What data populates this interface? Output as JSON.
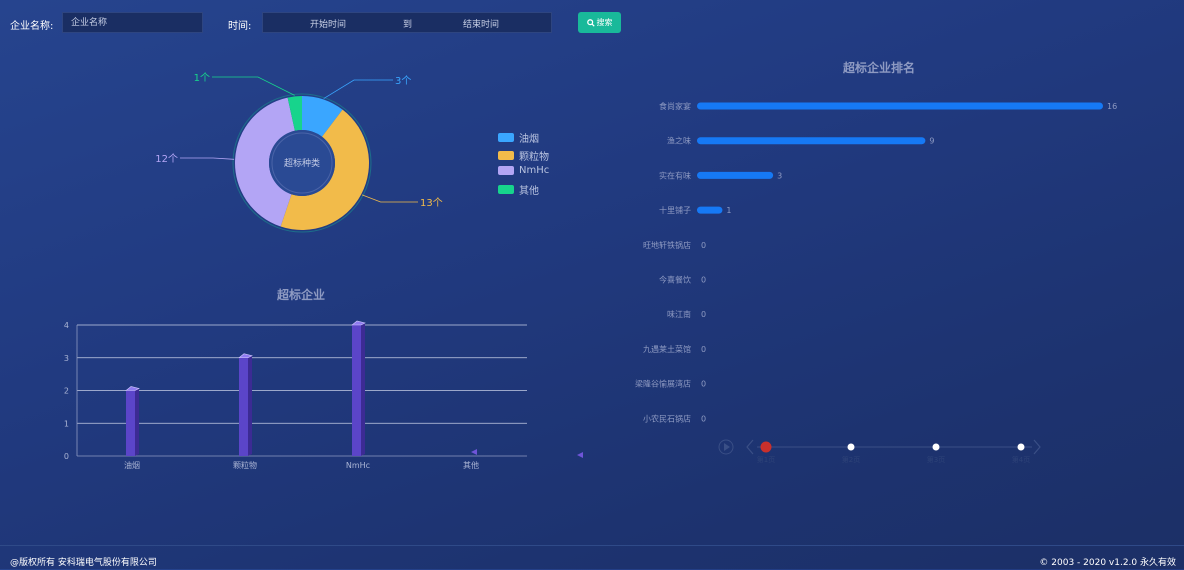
{
  "search": {
    "company_label": "企业名称:",
    "company_placeholder": "企业名称",
    "time_label": "时间:",
    "start_placeholder": "开始时间",
    "to_label": "到",
    "end_placeholder": "结束时间",
    "search_button": "搜索",
    "search_icon": "search-icon"
  },
  "donut": {
    "center_label": "超标种类",
    "legend": [
      {
        "name": "油烟",
        "color": "#3aa6ff"
      },
      {
        "name": "颗粒物",
        "color": "#f2bb4a"
      },
      {
        "name": "NmHc",
        "color": "#b3a5f5"
      },
      {
        "name": "其他",
        "color": "#17d48c"
      }
    ],
    "slice_labels": [
      "3个",
      "13个",
      "12个",
      "1个"
    ]
  },
  "bar_chart_title": "超标企业",
  "ranking_title": "超标企业排名",
  "timeline": {
    "dots": [
      "第1页",
      "第2页",
      "第3页",
      "第4页"
    ]
  },
  "footer": {
    "left": "@版权所有 安科瑞电气股份有限公司",
    "right": "© 2003 - 2020  v1.2.0  永久有效"
  },
  "chart_data": [
    {
      "type": "pie",
      "title": "",
      "center_text": "超标种类",
      "categories": [
        "油烟",
        "颗粒物",
        "NmHc",
        "其他"
      ],
      "values": [
        3,
        13,
        12,
        1
      ],
      "colors": [
        "#3aa6ff",
        "#f2bb4a",
        "#b3a5f5",
        "#17d48c"
      ],
      "legend_position": "right"
    },
    {
      "type": "bar",
      "title": "超标企业",
      "categories": [
        "油烟",
        "颗粒物",
        "NmHc",
        "其他"
      ],
      "values": [
        2,
        3,
        4,
        0
      ],
      "ylim": [
        0,
        4
      ],
      "yticks": [
        0,
        1,
        2,
        3,
        4
      ],
      "grid": true,
      "xlabel": "",
      "ylabel": ""
    },
    {
      "type": "bar",
      "orientation": "horizontal",
      "title": "超标企业排名",
      "categories": [
        "食尚家宴",
        "渔之味",
        "实在有味",
        "十里铺子",
        "旺地轩铁锅店",
        "今喜餐饮",
        "味江南",
        "九遇莱土菜馆",
        "梁隆谷愉展湾店",
        "小农民石锅店"
      ],
      "values": [
        16,
        9,
        3,
        1,
        0,
        0,
        0,
        0,
        0,
        0
      ],
      "xlim": [
        0,
        16
      ]
    }
  ]
}
